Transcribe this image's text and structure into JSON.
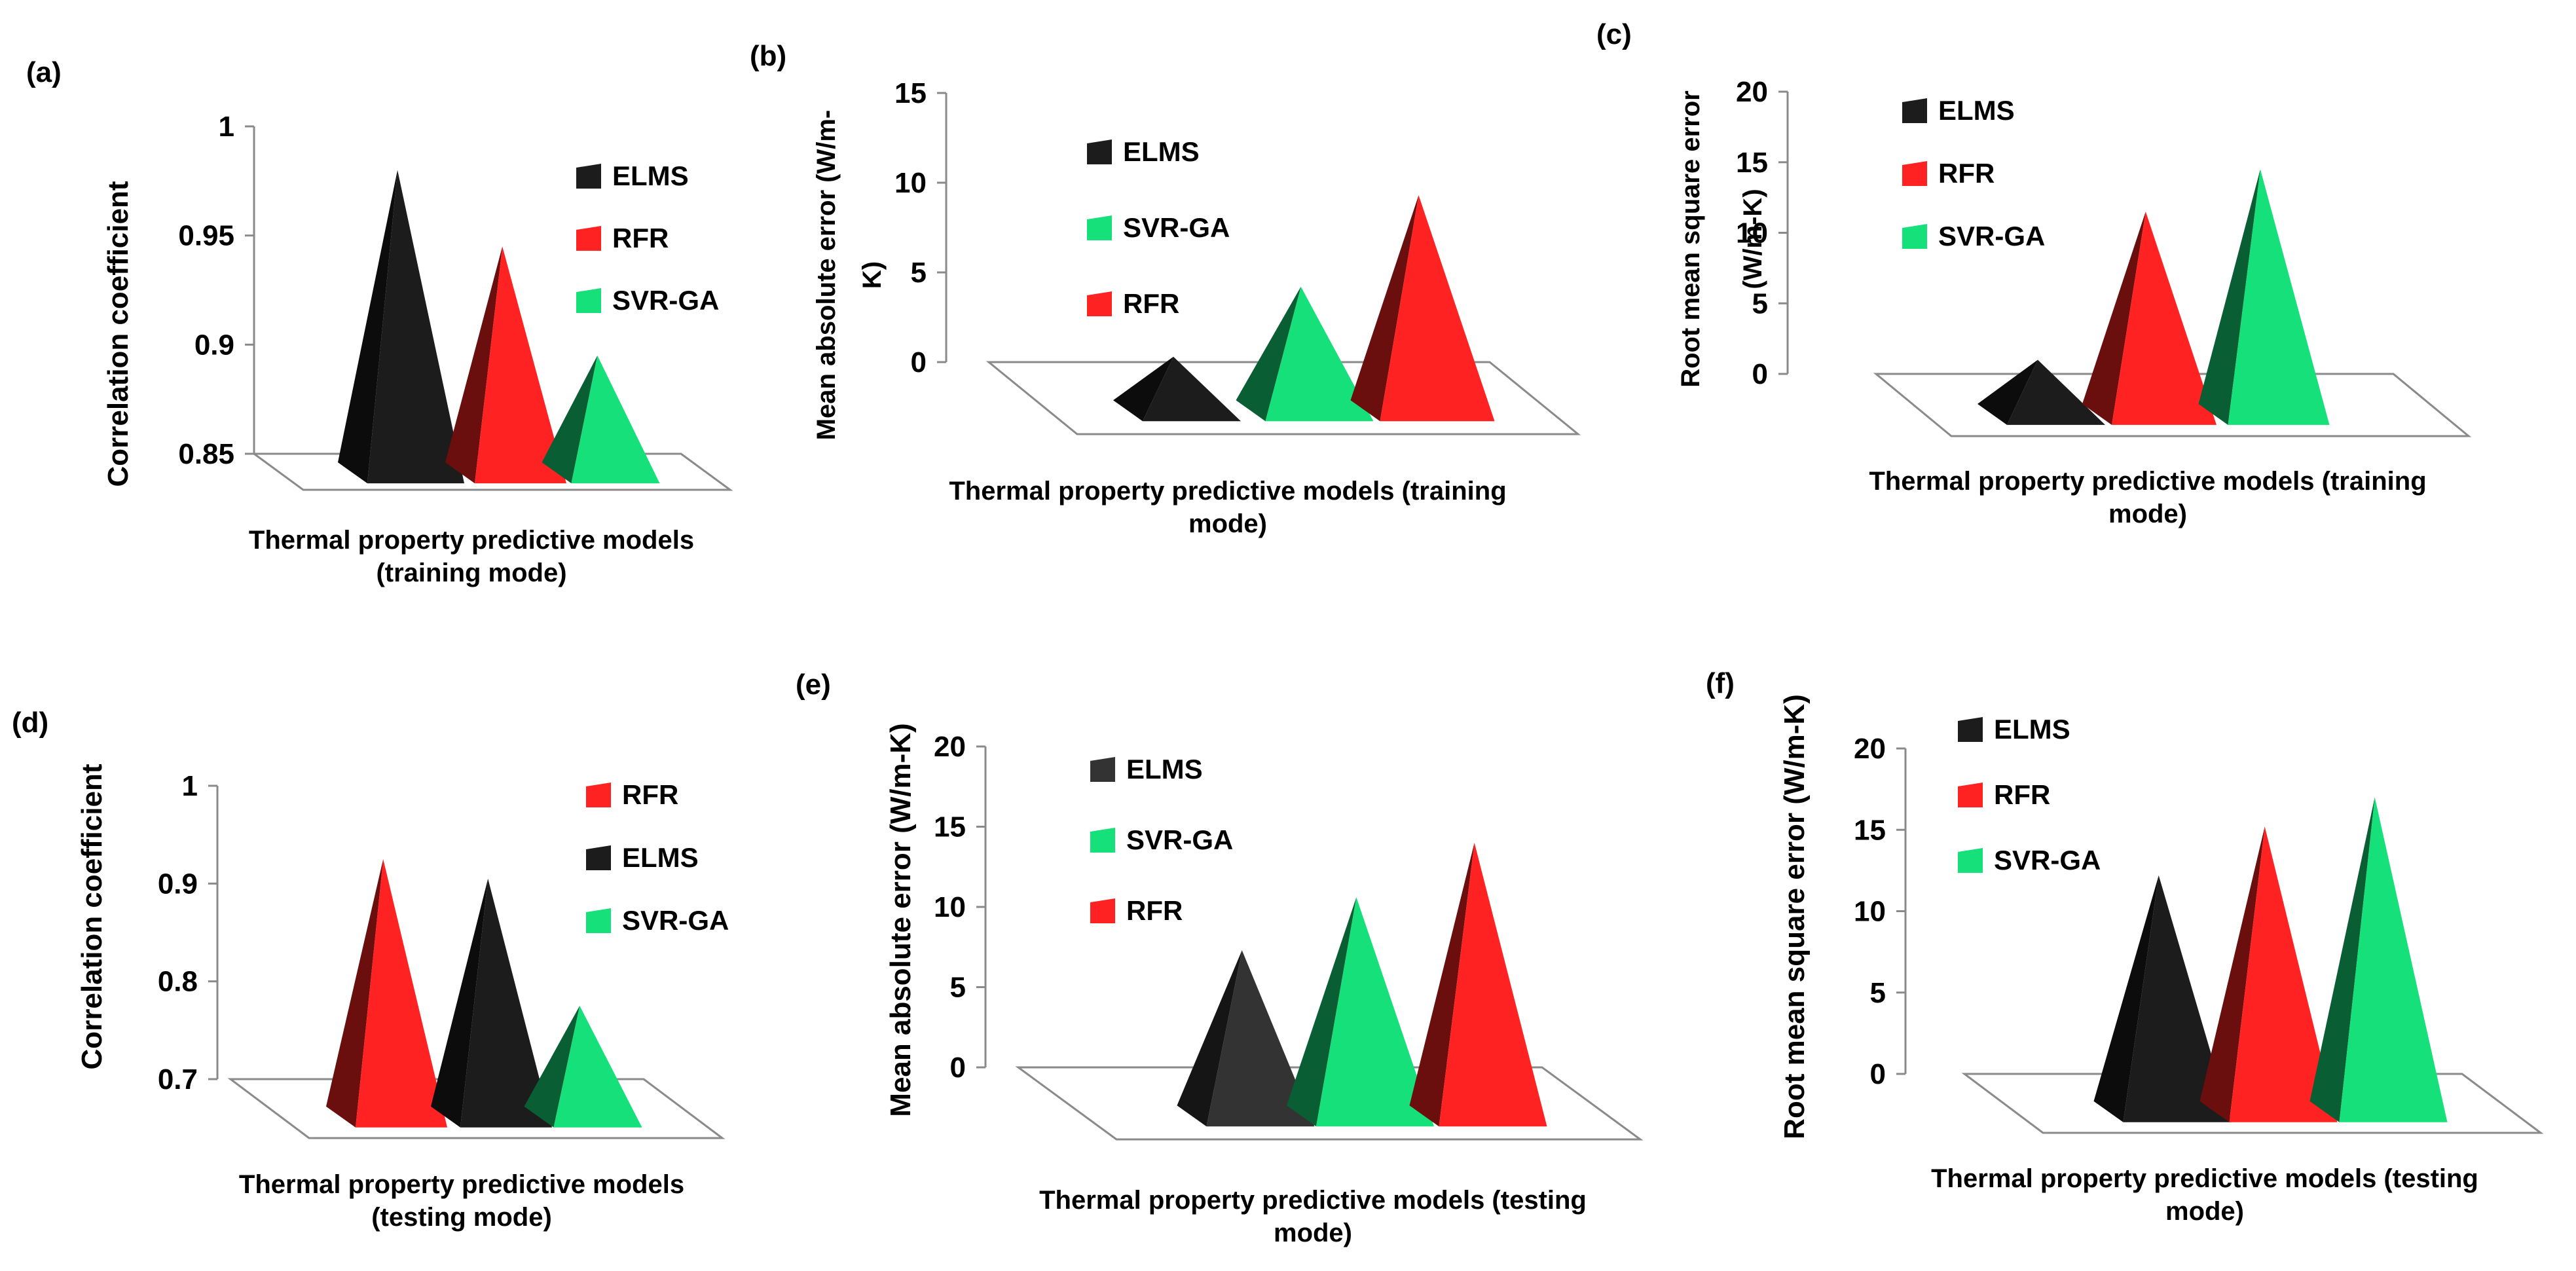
{
  "colors": {
    "ELMS": "#1c1c1c",
    "RFR": "#ff2222",
    "SVR-GA": "#16e07a",
    "panel_e_ELMS": "#333333",
    "frame": "#8a8a8a"
  },
  "chart_data": [
    {
      "panel": "(a)",
      "type": "bar",
      "style": "3d-pyramid",
      "categories": [
        "ELMS",
        "RFR",
        "SVR-GA"
      ],
      "values": [
        0.98,
        0.945,
        0.895
      ],
      "ylabel": "Correlation coefficient",
      "xlabel_lines": [
        "Thermal property predictive models",
        "(training mode)"
      ],
      "ylim": [
        0.85,
        1
      ],
      "ticks": [
        "0.85",
        "0.9",
        "0.95",
        "1"
      ],
      "legend": [
        "ELMS",
        "RFR",
        "SVR-GA"
      ],
      "legend_position": "top-right"
    },
    {
      "panel": "(b)",
      "type": "bar",
      "style": "3d-pyramid",
      "categories": [
        "ELMS",
        "SVR-GA",
        "RFR"
      ],
      "values": [
        0.3,
        4.2,
        9.3
      ],
      "ylabel_lines": [
        "Mean absolute error (W/m-",
        "K)"
      ],
      "xlabel_lines": [
        "Thermal property predictive models (training",
        "mode)"
      ],
      "ylim": [
        0,
        15
      ],
      "ticks": [
        "0",
        "5",
        "10",
        "15"
      ],
      "legend": [
        "ELMS",
        "SVR-GA",
        "RFR"
      ],
      "legend_position": "top-left"
    },
    {
      "panel": "(c)",
      "type": "bar",
      "style": "3d-pyramid",
      "categories": [
        "ELMS",
        "RFR",
        "SVR-GA"
      ],
      "values": [
        1.0,
        11.5,
        14.5
      ],
      "ylabel_lines": [
        "Root mean square error",
        "(W/m-K)"
      ],
      "xlabel_lines": [
        "Thermal property predictive models (training",
        "mode)"
      ],
      "ylim": [
        0,
        20
      ],
      "ticks": [
        "0",
        "5",
        "10",
        "15",
        "20"
      ],
      "legend": [
        "ELMS",
        "RFR",
        "SVR-GA"
      ],
      "legend_position": "top-left"
    },
    {
      "panel": "(d)",
      "type": "bar",
      "style": "3d-pyramid",
      "categories": [
        "RFR",
        "ELMS",
        "SVR-GA"
      ],
      "values": [
        0.925,
        0.905,
        0.775
      ],
      "ylabel": "Correlation coefficient",
      "xlabel_lines": [
        "Thermal property predictive models",
        "(testing mode)"
      ],
      "ylim": [
        0.7,
        1
      ],
      "ticks": [
        "0.7",
        "0.8",
        "0.9",
        "1"
      ],
      "legend": [
        "RFR",
        "ELMS",
        "SVR-GA"
      ],
      "legend_position": "top-right"
    },
    {
      "panel": "(e)",
      "type": "bar",
      "style": "3d-pyramid",
      "categories": [
        "ELMS",
        "SVR-GA",
        "RFR"
      ],
      "values": [
        7.3,
        10.6,
        14.0
      ],
      "ylabel": "Mean absolute error (W/m-K)",
      "xlabel_lines": [
        "Thermal property predictive models (testing",
        "mode)"
      ],
      "ylim": [
        0,
        20
      ],
      "ticks": [
        "0",
        "5",
        "10",
        "15",
        "20"
      ],
      "legend": [
        "ELMS",
        "SVR-GA",
        "RFR"
      ],
      "legend_position": "top-left"
    },
    {
      "panel": "(f)",
      "type": "bar",
      "style": "3d-pyramid",
      "categories": [
        "ELMS",
        "RFR",
        "SVR-GA"
      ],
      "values": [
        12.2,
        15.2,
        17.0
      ],
      "ylabel": "Root mean square error (W/m-K)",
      "xlabel_lines": [
        "Thermal property predictive models (testing",
        "mode)"
      ],
      "ylim": [
        0,
        20
      ],
      "ticks": [
        "0",
        "5",
        "10",
        "15",
        "20"
      ],
      "legend": [
        "ELMS",
        "RFR",
        "SVR-GA"
      ],
      "legend_position": "top-left"
    }
  ]
}
